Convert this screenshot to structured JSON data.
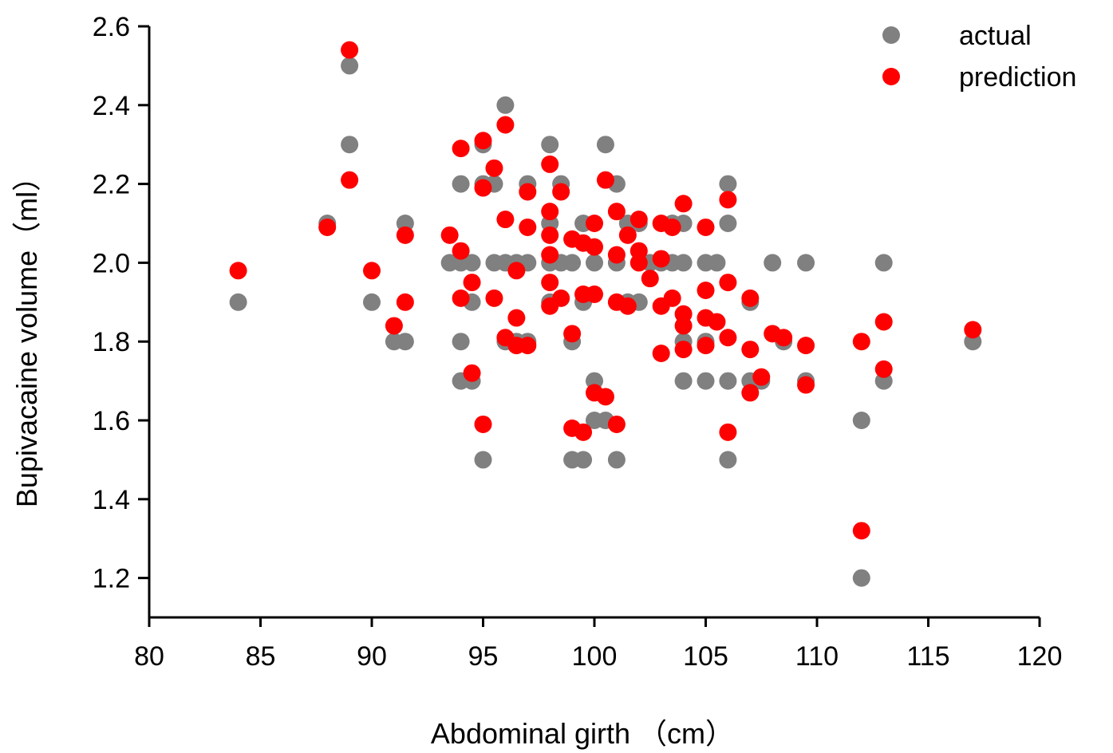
{
  "chart_data": {
    "type": "scatter",
    "xlabel": "Abdominal girth （cm）",
    "ylabel": "Bupivacaine volume（ml）",
    "xlim": [
      80,
      120
    ],
    "ylim": [
      1.1,
      2.6
    ],
    "x_ticks": [
      "80",
      "85",
      "90",
      "95",
      "100",
      "105",
      "110",
      "115",
      "120"
    ],
    "y_ticks": [
      "1.2",
      "1.4",
      "1.6",
      "1.8",
      "2.0",
      "2.2",
      "2.4",
      "2.6"
    ],
    "grid": false,
    "legend_position": "top-right",
    "series": [
      {
        "name": "actual",
        "color": "#808080",
        "points": [
          [
            84,
            1.9
          ],
          [
            88,
            2.1
          ],
          [
            89,
            2.5
          ],
          [
            89,
            2.3
          ],
          [
            90,
            1.9
          ],
          [
            91,
            1.8
          ],
          [
            91.5,
            2.1
          ],
          [
            91.5,
            1.8
          ],
          [
            93.5,
            2.0
          ],
          [
            94,
            2.2
          ],
          [
            94,
            2.0
          ],
          [
            94,
            1.8
          ],
          [
            94,
            1.7
          ],
          [
            94.5,
            2.0
          ],
          [
            94.5,
            1.9
          ],
          [
            94.5,
            1.7
          ],
          [
            95,
            2.3
          ],
          [
            95,
            2.2
          ],
          [
            95,
            1.5
          ],
          [
            95.5,
            2.2
          ],
          [
            95.5,
            2.0
          ],
          [
            96,
            2.4
          ],
          [
            96,
            2.0
          ],
          [
            96,
            1.8
          ],
          [
            96.5,
            2.0
          ],
          [
            96.5,
            1.8
          ],
          [
            97,
            2.2
          ],
          [
            97,
            2.0
          ],
          [
            97,
            1.8
          ],
          [
            98,
            2.3
          ],
          [
            98,
            2.1
          ],
          [
            98,
            2.0
          ],
          [
            98,
            1.9
          ],
          [
            98.5,
            2.2
          ],
          [
            98.5,
            2.0
          ],
          [
            99,
            2.0
          ],
          [
            99,
            1.8
          ],
          [
            99,
            1.5
          ],
          [
            99.5,
            2.1
          ],
          [
            99.5,
            1.9
          ],
          [
            99.5,
            1.5
          ],
          [
            100,
            2.0
          ],
          [
            100,
            1.7
          ],
          [
            100,
            1.6
          ],
          [
            100.5,
            2.3
          ],
          [
            100.5,
            1.6
          ],
          [
            101,
            2.2
          ],
          [
            101,
            2.0
          ],
          [
            101,
            1.5
          ],
          [
            101.5,
            2.1
          ],
          [
            101.5,
            1.9
          ],
          [
            102,
            2.1
          ],
          [
            102,
            1.9
          ],
          [
            102.5,
            2.0
          ],
          [
            103,
            2.0
          ],
          [
            103.5,
            2.1
          ],
          [
            103.5,
            2.0
          ],
          [
            104,
            2.1
          ],
          [
            104,
            2.0
          ],
          [
            104,
            1.8
          ],
          [
            104,
            1.7
          ],
          [
            105,
            2.0
          ],
          [
            105,
            1.8
          ],
          [
            105,
            1.7
          ],
          [
            105.5,
            2.0
          ],
          [
            106,
            2.2
          ],
          [
            106,
            2.1
          ],
          [
            106,
            1.7
          ],
          [
            106,
            1.5
          ],
          [
            107,
            1.9
          ],
          [
            107,
            1.7
          ],
          [
            107.5,
            1.7
          ],
          [
            108,
            2.0
          ],
          [
            108.5,
            1.8
          ],
          [
            109.5,
            2.0
          ],
          [
            109.5,
            1.7
          ],
          [
            112,
            1.6
          ],
          [
            112,
            1.2
          ],
          [
            113,
            2.0
          ],
          [
            113,
            1.7
          ],
          [
            117,
            1.8
          ]
        ]
      },
      {
        "name": "prediction",
        "color": "#ff0000",
        "points": [
          [
            84,
            1.98
          ],
          [
            88,
            2.09
          ],
          [
            89,
            2.54
          ],
          [
            89,
            2.21
          ],
          [
            90,
            1.98
          ],
          [
            91,
            1.84
          ],
          [
            91.5,
            2.07
          ],
          [
            91.5,
            1.9
          ],
          [
            93.5,
            2.07
          ],
          [
            94,
            2.29
          ],
          [
            94,
            2.03
          ],
          [
            94,
            1.91
          ],
          [
            94.5,
            1.95
          ],
          [
            94.5,
            1.72
          ],
          [
            95,
            2.31
          ],
          [
            95,
            2.19
          ],
          [
            95,
            1.59
          ],
          [
            95.5,
            2.24
          ],
          [
            95.5,
            1.91
          ],
          [
            96,
            2.35
          ],
          [
            96,
            2.11
          ],
          [
            96,
            1.81
          ],
          [
            96.5,
            1.98
          ],
          [
            96.5,
            1.86
          ],
          [
            96.5,
            1.79
          ],
          [
            97,
            2.18
          ],
          [
            97,
            2.09
          ],
          [
            97,
            1.79
          ],
          [
            98,
            2.25
          ],
          [
            98,
            2.13
          ],
          [
            98,
            2.07
          ],
          [
            98,
            2.02
          ],
          [
            98,
            1.95
          ],
          [
            98,
            1.89
          ],
          [
            98.5,
            2.18
          ],
          [
            98.5,
            1.91
          ],
          [
            99,
            2.06
          ],
          [
            99,
            1.82
          ],
          [
            99,
            1.58
          ],
          [
            99.5,
            2.05
          ],
          [
            99.5,
            1.92
          ],
          [
            99.5,
            1.57
          ],
          [
            100,
            2.1
          ],
          [
            100,
            2.04
          ],
          [
            100,
            1.92
          ],
          [
            100,
            1.67
          ],
          [
            100.5,
            2.21
          ],
          [
            100.5,
            1.66
          ],
          [
            101,
            2.13
          ],
          [
            101,
            2.02
          ],
          [
            101,
            1.9
          ],
          [
            101,
            1.59
          ],
          [
            101.5,
            2.07
          ],
          [
            101.5,
            1.89
          ],
          [
            102,
            2.11
          ],
          [
            102,
            2.03
          ],
          [
            102,
            2.0
          ],
          [
            102.5,
            1.96
          ],
          [
            103,
            2.1
          ],
          [
            103,
            2.01
          ],
          [
            103,
            1.89
          ],
          [
            103,
            1.77
          ],
          [
            103.5,
            2.09
          ],
          [
            103.5,
            1.91
          ],
          [
            104,
            2.15
          ],
          [
            104,
            1.87
          ],
          [
            104,
            1.84
          ],
          [
            104,
            1.78
          ],
          [
            105,
            2.09
          ],
          [
            105,
            1.93
          ],
          [
            105,
            1.86
          ],
          [
            105,
            1.79
          ],
          [
            105.5,
            1.85
          ],
          [
            106,
            2.16
          ],
          [
            106,
            1.95
          ],
          [
            106,
            1.81
          ],
          [
            106,
            1.57
          ],
          [
            107,
            1.91
          ],
          [
            107,
            1.78
          ],
          [
            107,
            1.67
          ],
          [
            107.5,
            1.71
          ],
          [
            108,
            1.82
          ],
          [
            108.5,
            1.81
          ],
          [
            109.5,
            1.79
          ],
          [
            109.5,
            1.69
          ],
          [
            112,
            1.8
          ],
          [
            112,
            1.32
          ],
          [
            113,
            1.85
          ],
          [
            113,
            1.73
          ],
          [
            117,
            1.83
          ]
        ]
      }
    ]
  }
}
